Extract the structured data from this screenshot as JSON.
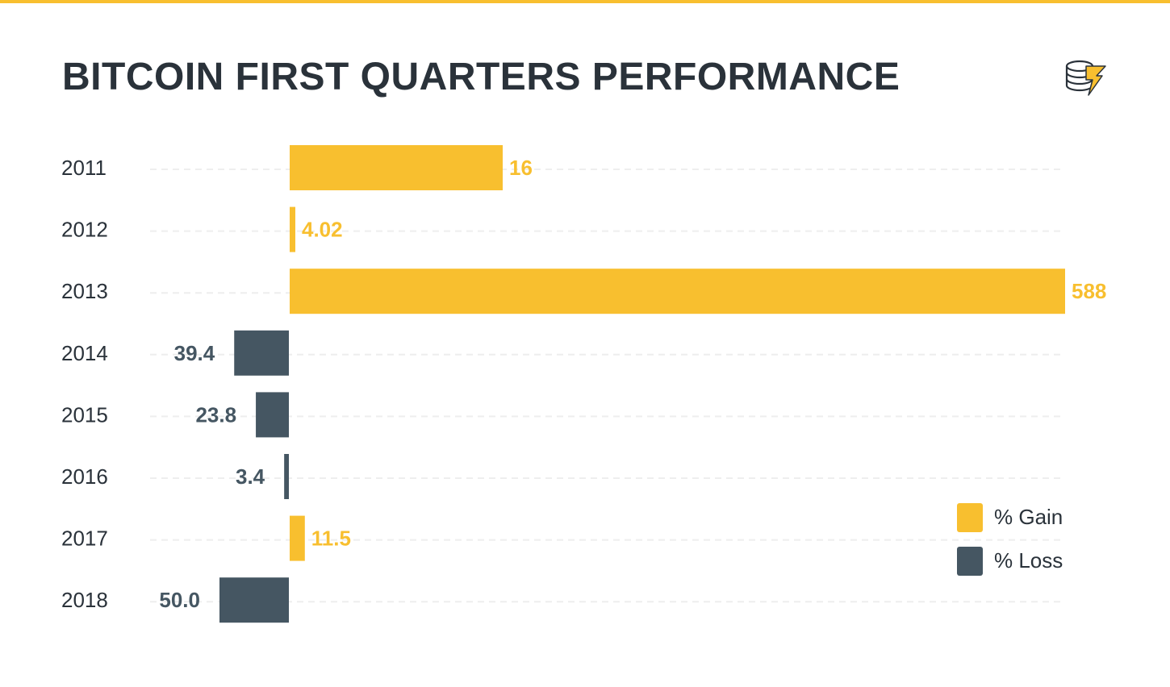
{
  "colors": {
    "gain": "#f8bf2f",
    "loss": "#455662",
    "accent": "#f8bf2f",
    "title": "#2a323a",
    "axis_text": "#2a323a",
    "grid": "#eeeeee"
  },
  "header": {
    "title": "BITCOIN FIRST QUARTERS PERFORMANCE",
    "logo_icon": "coin-stack-lightning-logo"
  },
  "chart_data": {
    "type": "bar",
    "orientation": "horizontal",
    "title": "BITCOIN FIRST QUARTERS PERFORMANCE",
    "categories": [
      "2011",
      "2012",
      "2013",
      "2014",
      "2015",
      "2016",
      "2017",
      "2018"
    ],
    "series": [
      {
        "name": "% Gain",
        "values": [
          16,
          4.02,
          588,
          null,
          null,
          null,
          11.5,
          null
        ],
        "labels": [
          "16",
          "4.02",
          "588",
          "",
          "",
          "",
          "11.5",
          ""
        ]
      },
      {
        "name": "% Loss",
        "values": [
          null,
          null,
          null,
          -39.4,
          -23.8,
          -3.4,
          null,
          -50.0
        ],
        "labels": [
          "",
          "",
          "",
          "39.4",
          "23.8",
          "3.4",
          "",
          "50.0"
        ]
      }
    ],
    "xlim": [
      -52.5,
      588
    ],
    "grid": true,
    "legend": "bottom-right"
  }
}
